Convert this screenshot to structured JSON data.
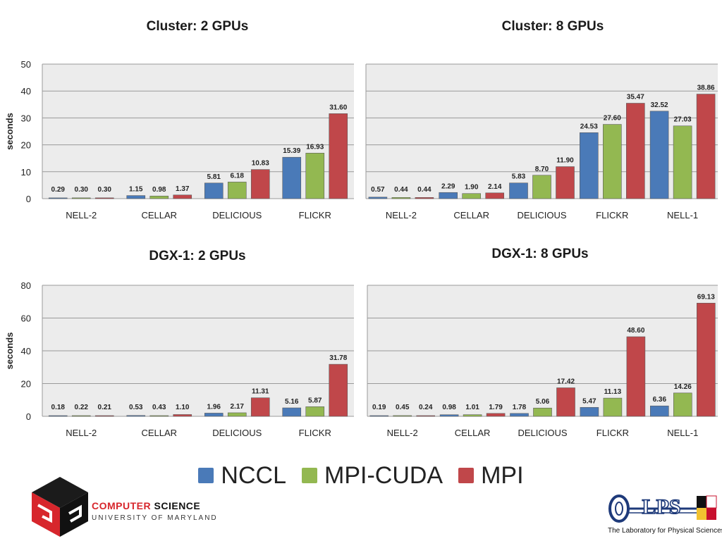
{
  "colors": {
    "NCCL": "#4a7ab8",
    "MPI-CUDA": "#93b851",
    "MPI": "#c0474a"
  },
  "legend": {
    "items": [
      "NCCL",
      "MPI-CUDA",
      "MPI"
    ]
  },
  "branding": {
    "umd_line1_a": "COMPUTER",
    "umd_line1_b": "SCIENCE",
    "umd_line2": "UNIVERSITY OF MARYLAND",
    "lps_mark": "LPS",
    "lps_caption": "The Laboratory for Physical Sciences"
  },
  "chart_data": [
    {
      "type": "bar",
      "title": "Cluster: 2 GPUs",
      "ylabel": "seconds",
      "ylim": [
        0,
        50
      ],
      "yticks": [
        0,
        10,
        20,
        30,
        40,
        50
      ],
      "grid": true,
      "categories": [
        "NELL-2",
        "CELLAR",
        "DELICIOUS",
        "FLICKR"
      ],
      "series": [
        {
          "name": "NCCL",
          "values": [
            0.29,
            1.15,
            5.81,
            15.39
          ],
          "labels": [
            "0.29",
            "1.15",
            "5.81",
            "15.39"
          ]
        },
        {
          "name": "MPI-CUDA",
          "values": [
            0.3,
            0.98,
            6.18,
            16.93
          ],
          "labels": [
            "0.30",
            "0.98",
            "6.18",
            "16.93"
          ]
        },
        {
          "name": "MPI",
          "values": [
            0.3,
            1.37,
            10.83,
            31.6
          ],
          "labels": [
            "0.30",
            "1.37",
            "10.83",
            "31.60"
          ]
        }
      ]
    },
    {
      "type": "bar",
      "title": "Cluster: 8 GPUs",
      "ylabel": "",
      "ylim": [
        0,
        50
      ],
      "yticks": [],
      "grid": true,
      "categories": [
        "NELL-2",
        "CELLAR",
        "DELICIOUS",
        "FLICKR",
        "NELL-1"
      ],
      "series": [
        {
          "name": "NCCL",
          "values": [
            0.57,
            2.29,
            5.83,
            24.53,
            32.52
          ],
          "labels": [
            "0.57",
            "2.29",
            "5.83",
            "24.53",
            "32.52"
          ]
        },
        {
          "name": "MPI-CUDA",
          "values": [
            0.44,
            1.9,
            8.7,
            27.6,
            27.03
          ],
          "labels": [
            "0.44",
            "1.90",
            "8.70",
            "27.60",
            "27.03"
          ]
        },
        {
          "name": "MPI",
          "values": [
            0.44,
            2.14,
            11.9,
            35.47,
            38.86
          ],
          "labels": [
            "0.44",
            "2.14",
            "11.90",
            "35.47",
            "38.86"
          ]
        }
      ]
    },
    {
      "type": "bar",
      "title": "DGX-1: 2 GPUs",
      "ylabel": "seconds",
      "ylim": [
        0,
        80
      ],
      "yticks": [
        0,
        20,
        40,
        60,
        80
      ],
      "grid": true,
      "categories": [
        "NELL-2",
        "CELLAR",
        "DELICIOUS",
        "FLICKR"
      ],
      "series": [
        {
          "name": "NCCL",
          "values": [
            0.18,
            0.53,
            1.96,
            5.16
          ],
          "labels": [
            "0.18",
            "0.53",
            "1.96",
            "5.16"
          ]
        },
        {
          "name": "MPI-CUDA",
          "values": [
            0.22,
            0.43,
            2.17,
            5.87
          ],
          "labels": [
            "0.22",
            "0.43",
            "2.17",
            "5.87"
          ]
        },
        {
          "name": "MPI",
          "values": [
            0.21,
            1.1,
            11.31,
            31.78
          ],
          "labels": [
            "0.21",
            "1.10",
            "11.31",
            "31.78"
          ]
        }
      ]
    },
    {
      "type": "bar",
      "title": "DGX-1: 8 GPUs",
      "ylabel": "",
      "ylim": [
        0,
        80
      ],
      "yticks": [],
      "grid": true,
      "categories": [
        "NELL-2",
        "CELLAR",
        "DELICIOUS",
        "FLICKR",
        "NELL-1"
      ],
      "series": [
        {
          "name": "NCCL",
          "values": [
            0.19,
            0.98,
            1.78,
            5.47,
            6.36
          ],
          "labels": [
            "0.19",
            "0.98",
            "1.78",
            "5.47",
            "6.36"
          ]
        },
        {
          "name": "MPI-CUDA",
          "values": [
            0.45,
            1.01,
            5.06,
            11.13,
            14.26
          ],
          "labels": [
            "0.45",
            "1.01",
            "5.06",
            "11.13",
            "14.26"
          ]
        },
        {
          "name": "MPI",
          "values": [
            0.24,
            1.79,
            17.42,
            48.6,
            69.13
          ],
          "labels": [
            "0.24",
            "1.79",
            "17.42",
            "48.60",
            "69.13"
          ]
        }
      ]
    }
  ]
}
